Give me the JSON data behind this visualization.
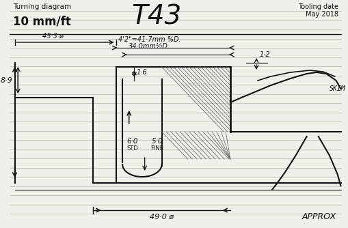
{
  "title": "T43",
  "subtitle_left": "Turning diagram",
  "subtitle_scale": "10 mm/ft",
  "tooling_date_line1": "Tooling date",
  "tooling_date_line2": "May 2018",
  "dim_45_3": "45·3 ø",
  "dim_42": "4'2\"=41·7mm %D.",
  "dim_34": "34·0mm½D",
  "dim_16": "1·6",
  "dim_12": "1·2",
  "dim_89": "8·9",
  "dim_60": "6·0",
  "dim_std": "STD",
  "dim_50": "5·0",
  "dim_fine": "FINE",
  "dim_49": "49·0 ø",
  "approx": "APPROX",
  "skim": "SKIM",
  "bg_color": "#f0f0eb",
  "line_color": "#111111",
  "hatch_color": "#555555",
  "ruled_line_color": "#c0c0b8",
  "figsize": [
    5.09,
    3.34
  ],
  "dpi": 100
}
